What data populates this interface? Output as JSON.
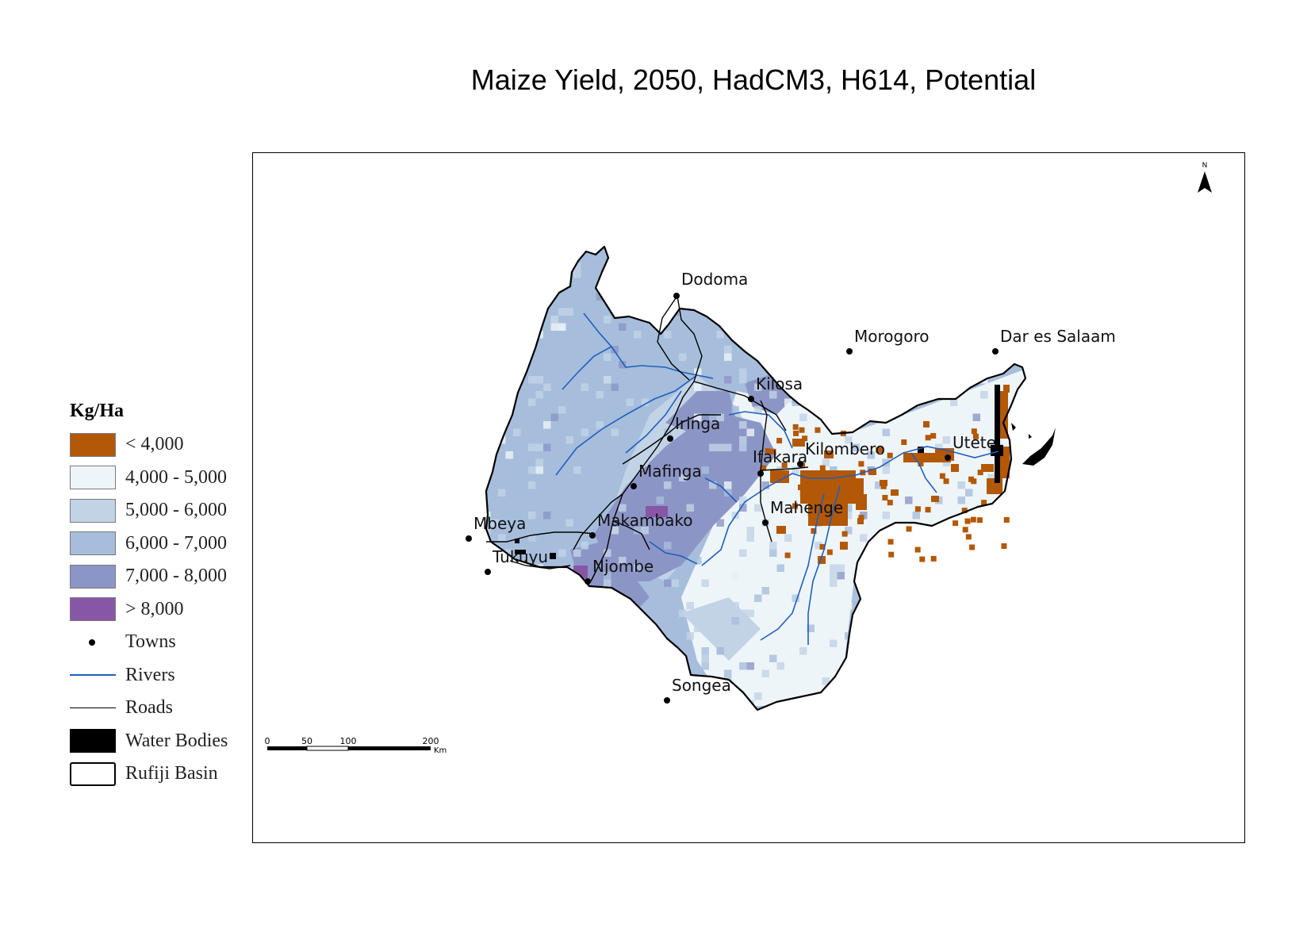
{
  "map": {
    "title": "Maize Yield, 2050, HadCM3, H614, Potential",
    "north_label": "N",
    "legend": {
      "title": "Kg/Ha",
      "classes": [
        {
          "label": "< 4,000",
          "color": "#b35806"
        },
        {
          "label": "4,000 - 5,000",
          "color": "#eef5f8"
        },
        {
          "label": "5,000 - 6,000",
          "color": "#c2d3e6"
        },
        {
          "label": "6,000 - 7,000",
          "color": "#a6bedc"
        },
        {
          "label": "7,000 - 8,000",
          "color": "#8c96c6"
        },
        {
          "label": "> 8,000",
          "color": "#8856a7"
        }
      ],
      "symbols": [
        {
          "label": "Towns"
        },
        {
          "label": "Rivers",
          "color": "#1f5fbf"
        },
        {
          "label": "Roads"
        },
        {
          "label": "Water Bodies"
        },
        {
          "label": "Rufiji Basin"
        }
      ]
    },
    "towns": [
      {
        "name": "Dodoma"
      },
      {
        "name": "Morogoro"
      },
      {
        "name": "Dar es Salaam"
      },
      {
        "name": "Kilosa"
      },
      {
        "name": "Iringa"
      },
      {
        "name": "Kilombero"
      },
      {
        "name": "Ifakara"
      },
      {
        "name": "Utete"
      },
      {
        "name": "Mafinga"
      },
      {
        "name": "Mahenge"
      },
      {
        "name": "Mbeya"
      },
      {
        "name": "Makambako"
      },
      {
        "name": "Tukuyu"
      },
      {
        "name": "Njombe"
      },
      {
        "name": "Songea"
      }
    ],
    "scale_bar": {
      "ticks": [
        "0",
        "50",
        "100",
        "200"
      ],
      "unit": "Km"
    }
  }
}
